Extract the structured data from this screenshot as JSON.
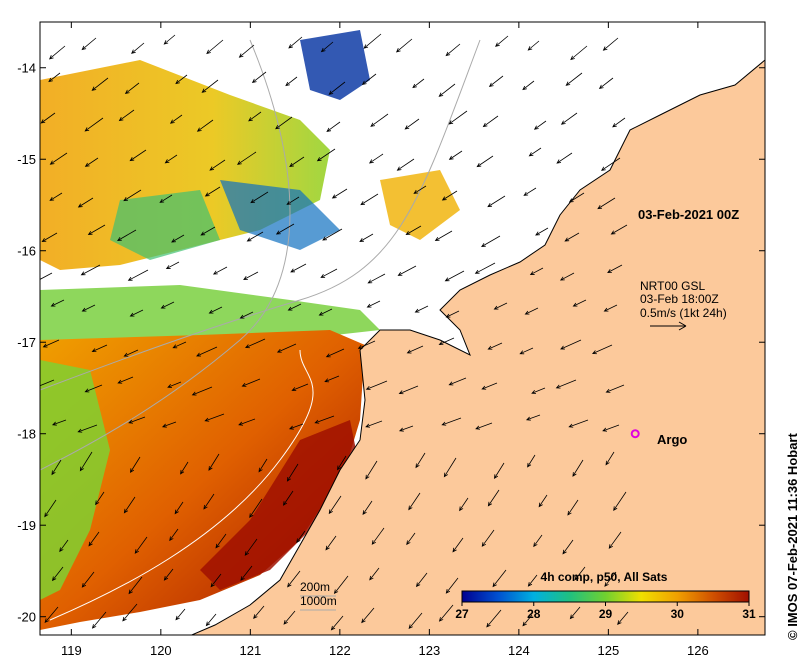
{
  "map": {
    "lon_range": [
      118.65,
      126.75
    ],
    "lat_range": [
      -20.2,
      -13.5
    ],
    "lon_ticks": [
      "119",
      "120",
      "121",
      "122",
      "123",
      "124",
      "125",
      "126"
    ],
    "lat_ticks": [
      "-14",
      "-15",
      "-16",
      "-17",
      "-18",
      "-19",
      "-20"
    ],
    "colors": {
      "land": "#fcc99b",
      "ocean_cloud": "#ffffff",
      "frame": "#000000"
    }
  },
  "annotations": {
    "date": "03-Feb-2021 00Z",
    "current_source": "NRT00 GSL",
    "current_time": "03-Feb 18:00Z",
    "scale_text": "0.5m/s (1kt 24h)",
    "argo_label": "Argo",
    "argo_position": {
      "lon": 125.3,
      "lat": -18.0
    },
    "argo_color": "#e000e0",
    "contour_200": "200m",
    "contour_1000": "1000m"
  },
  "colorbar": {
    "title": "4h comp, p50, All Sats",
    "min": 27,
    "max": 31,
    "tick_labels": [
      "27",
      "28",
      "29",
      "30",
      "31"
    ],
    "stops": [
      "#000090",
      "#0050d0",
      "#00b0e0",
      "#20c080",
      "#70d030",
      "#f0e000",
      "#f0a000",
      "#d05000",
      "#a01000"
    ]
  },
  "credit": "© IMOS 07-Feb-2021 11:36 Hobart"
}
